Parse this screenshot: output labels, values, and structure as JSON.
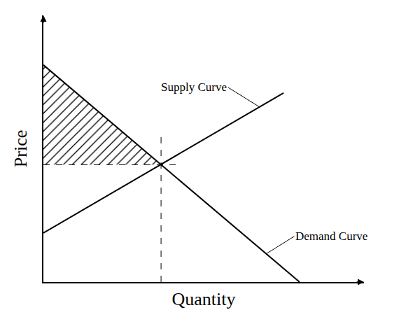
{
  "chart_data": {
    "type": "line",
    "x_label": "Quantity",
    "y_label": "Price",
    "xlim": [
      0,
      100
    ],
    "ylim": [
      0,
      100
    ],
    "xticks": [],
    "yticks": [],
    "tick_labels": false,
    "grid": false,
    "series": [
      {
        "name": "Supply Curve",
        "color": "#000000",
        "x": [
          0,
          74.9
        ],
        "values": [
          18.4,
          70.9
        ]
      },
      {
        "name": "Demand Curve",
        "color": "#000000",
        "x": [
          0,
          79.9
        ],
        "values": [
          81.4,
          0
        ]
      }
    ],
    "guides": [
      {
        "x": [
          0,
          42.8
        ],
        "values": [
          44,
          44
        ],
        "line_style": "dashed"
      },
      {
        "x": [
          36.7,
          36.7
        ],
        "values": [
          0,
          55.9
        ],
        "line_style": "dashed"
      }
    ],
    "shaded_region": {
      "x": [
        0,
        36.7,
        0
      ],
      "values": [
        81.4,
        44,
        44
      ]
    }
  }
}
